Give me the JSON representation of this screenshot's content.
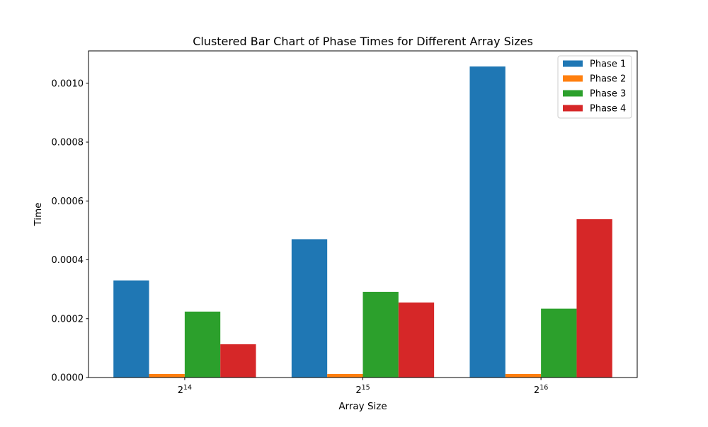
{
  "chart_data": {
    "type": "bar",
    "title": "Clustered Bar Chart of Phase Times for Different Array Sizes",
    "xlabel": "Array Size",
    "ylabel": "Time",
    "categories": [
      {
        "base": "2",
        "exp": "14"
      },
      {
        "base": "2",
        "exp": "15"
      },
      {
        "base": "2",
        "exp": "16"
      }
    ],
    "series": [
      {
        "name": "Phase 1",
        "color": "#1f77b4",
        "values": [
          0.00033,
          0.00047,
          0.001057
        ]
      },
      {
        "name": "Phase 2",
        "color": "#ff7f0e",
        "values": [
          1.2e-05,
          1.2e-05,
          1.2e-05
        ]
      },
      {
        "name": "Phase 3",
        "color": "#2ca02c",
        "values": [
          0.000224,
          0.000291,
          0.000234
        ]
      },
      {
        "name": "Phase 4",
        "color": "#d62728",
        "values": [
          0.000113,
          0.000255,
          0.000538
        ]
      }
    ],
    "ylim": [
      0,
      0.00111
    ],
    "yticks": [
      "0.0000",
      "0.0002",
      "0.0004",
      "0.0006",
      "0.0008",
      "0.0010"
    ],
    "ytick_values": [
      0,
      0.0002,
      0.0004,
      0.0006,
      0.0008,
      0.001
    ],
    "grid": false,
    "legend_position": "top-right"
  }
}
